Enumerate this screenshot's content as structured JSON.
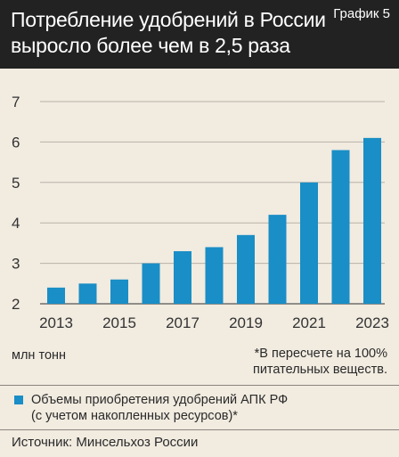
{
  "header": {
    "title": "Потребление удобрений в России выросло более чем в 2,5 раза",
    "badge": "График 5"
  },
  "units_label": "млн тонн",
  "footnote": "*В пересчете на 100%\nпитательных веществ.",
  "legend": {
    "text": "Объемы приобретения удобрений АПК РФ\n(с учетом накопленных ресурсов)*",
    "color": "#1a8ec6"
  },
  "source": "Источник: Минсельхоз России",
  "colors": {
    "header_bg": "#222222",
    "background": "#f1ebe0",
    "bar": "#1a8ec6",
    "gridline": "#b7b2a8"
  },
  "chart_data": {
    "type": "bar",
    "categories": [
      "2013",
      "2014",
      "2015",
      "2016",
      "2017",
      "2018",
      "2019",
      "2020",
      "2021",
      "2022",
      "2023"
    ],
    "x_tick_labels": [
      "2013",
      "2015",
      "2017",
      "2019",
      "2021",
      "2023"
    ],
    "series": [
      {
        "name": "Объемы приобретения удобрений АПК РФ (с учетом накопленных ресурсов)*",
        "values": [
          2.4,
          2.5,
          2.6,
          3.0,
          3.3,
          3.4,
          3.7,
          4.2,
          5.0,
          5.8,
          6.1
        ]
      }
    ],
    "ylim": [
      2,
      7
    ],
    "yticks": [
      2,
      3,
      4,
      5,
      6,
      7
    ],
    "ylabel": "млн тонн",
    "grid": true
  }
}
